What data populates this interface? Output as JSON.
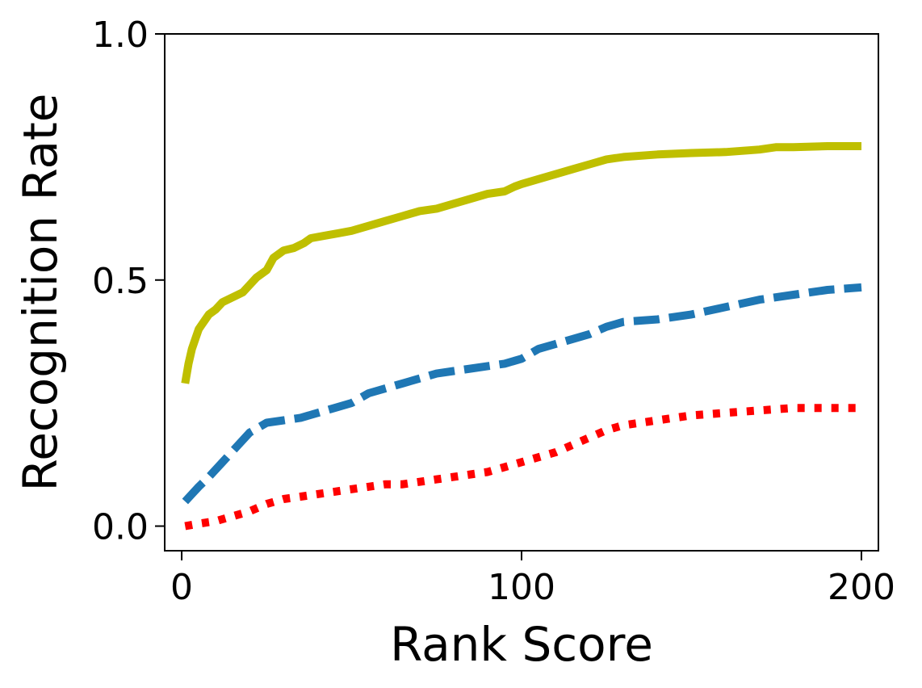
{
  "chart_data": {
    "type": "line",
    "xlabel": "Rank Score",
    "ylabel": "Recognition Rate",
    "xlim": [
      -5,
      205
    ],
    "ylim": [
      -0.05,
      1.0
    ],
    "xticks": [
      0,
      100,
      200
    ],
    "xtick_labels": [
      "0",
      "100",
      "200"
    ],
    "yticks": [
      0.0,
      0.5,
      1.0
    ],
    "ytick_labels": [
      "0.0",
      "0.5",
      "1.0"
    ],
    "grid": false,
    "series": [
      {
        "style": "solid",
        "color": "#bfbf00",
        "x": [
          1,
          2,
          3,
          4,
          5,
          6,
          7,
          8,
          10,
          12,
          15,
          18,
          20,
          22,
          25,
          27,
          30,
          33,
          36,
          38,
          42,
          46,
          50,
          55,
          60,
          65,
          70,
          75,
          80,
          85,
          90,
          95,
          98,
          100,
          105,
          110,
          115,
          120,
          125,
          130,
          140,
          150,
          160,
          170,
          175,
          180,
          190,
          200
        ],
        "y": [
          0.29,
          0.33,
          0.36,
          0.38,
          0.4,
          0.41,
          0.42,
          0.43,
          0.44,
          0.455,
          0.465,
          0.475,
          0.49,
          0.505,
          0.52,
          0.545,
          0.56,
          0.565,
          0.575,
          0.585,
          0.59,
          0.595,
          0.6,
          0.61,
          0.62,
          0.63,
          0.64,
          0.645,
          0.655,
          0.665,
          0.675,
          0.68,
          0.69,
          0.695,
          0.705,
          0.715,
          0.725,
          0.735,
          0.745,
          0.75,
          0.755,
          0.758,
          0.76,
          0.765,
          0.77,
          0.77,
          0.772,
          0.772
        ]
      },
      {
        "style": "dashed",
        "color": "#1f77b4",
        "x": [
          1,
          3,
          5,
          8,
          12,
          16,
          20,
          25,
          30,
          35,
          40,
          45,
          50,
          55,
          60,
          65,
          70,
          75,
          80,
          85,
          90,
          95,
          100,
          105,
          110,
          115,
          120,
          125,
          130,
          140,
          150,
          160,
          170,
          180,
          190,
          200
        ],
        "y": [
          0.05,
          0.065,
          0.08,
          0.1,
          0.13,
          0.16,
          0.19,
          0.21,
          0.215,
          0.22,
          0.23,
          0.24,
          0.25,
          0.27,
          0.28,
          0.29,
          0.3,
          0.31,
          0.315,
          0.32,
          0.325,
          0.33,
          0.34,
          0.36,
          0.37,
          0.38,
          0.39,
          0.405,
          0.415,
          0.42,
          0.43,
          0.445,
          0.46,
          0.47,
          0.48,
          0.485
        ]
      },
      {
        "style": "dotted",
        "color": "#ff0000",
        "x": [
          1,
          5,
          10,
          15,
          20,
          25,
          30,
          35,
          40,
          45,
          50,
          55,
          60,
          65,
          70,
          75,
          80,
          85,
          90,
          95,
          100,
          105,
          110,
          115,
          120,
          125,
          130,
          140,
          150,
          160,
          170,
          180,
          190,
          200
        ],
        "y": [
          0.0,
          0.005,
          0.01,
          0.02,
          0.03,
          0.045,
          0.055,
          0.06,
          0.065,
          0.07,
          0.075,
          0.08,
          0.085,
          0.085,
          0.09,
          0.095,
          0.1,
          0.105,
          0.11,
          0.12,
          0.13,
          0.14,
          0.15,
          0.165,
          0.18,
          0.195,
          0.205,
          0.215,
          0.225,
          0.23,
          0.235,
          0.24,
          0.24,
          0.24
        ]
      }
    ]
  }
}
